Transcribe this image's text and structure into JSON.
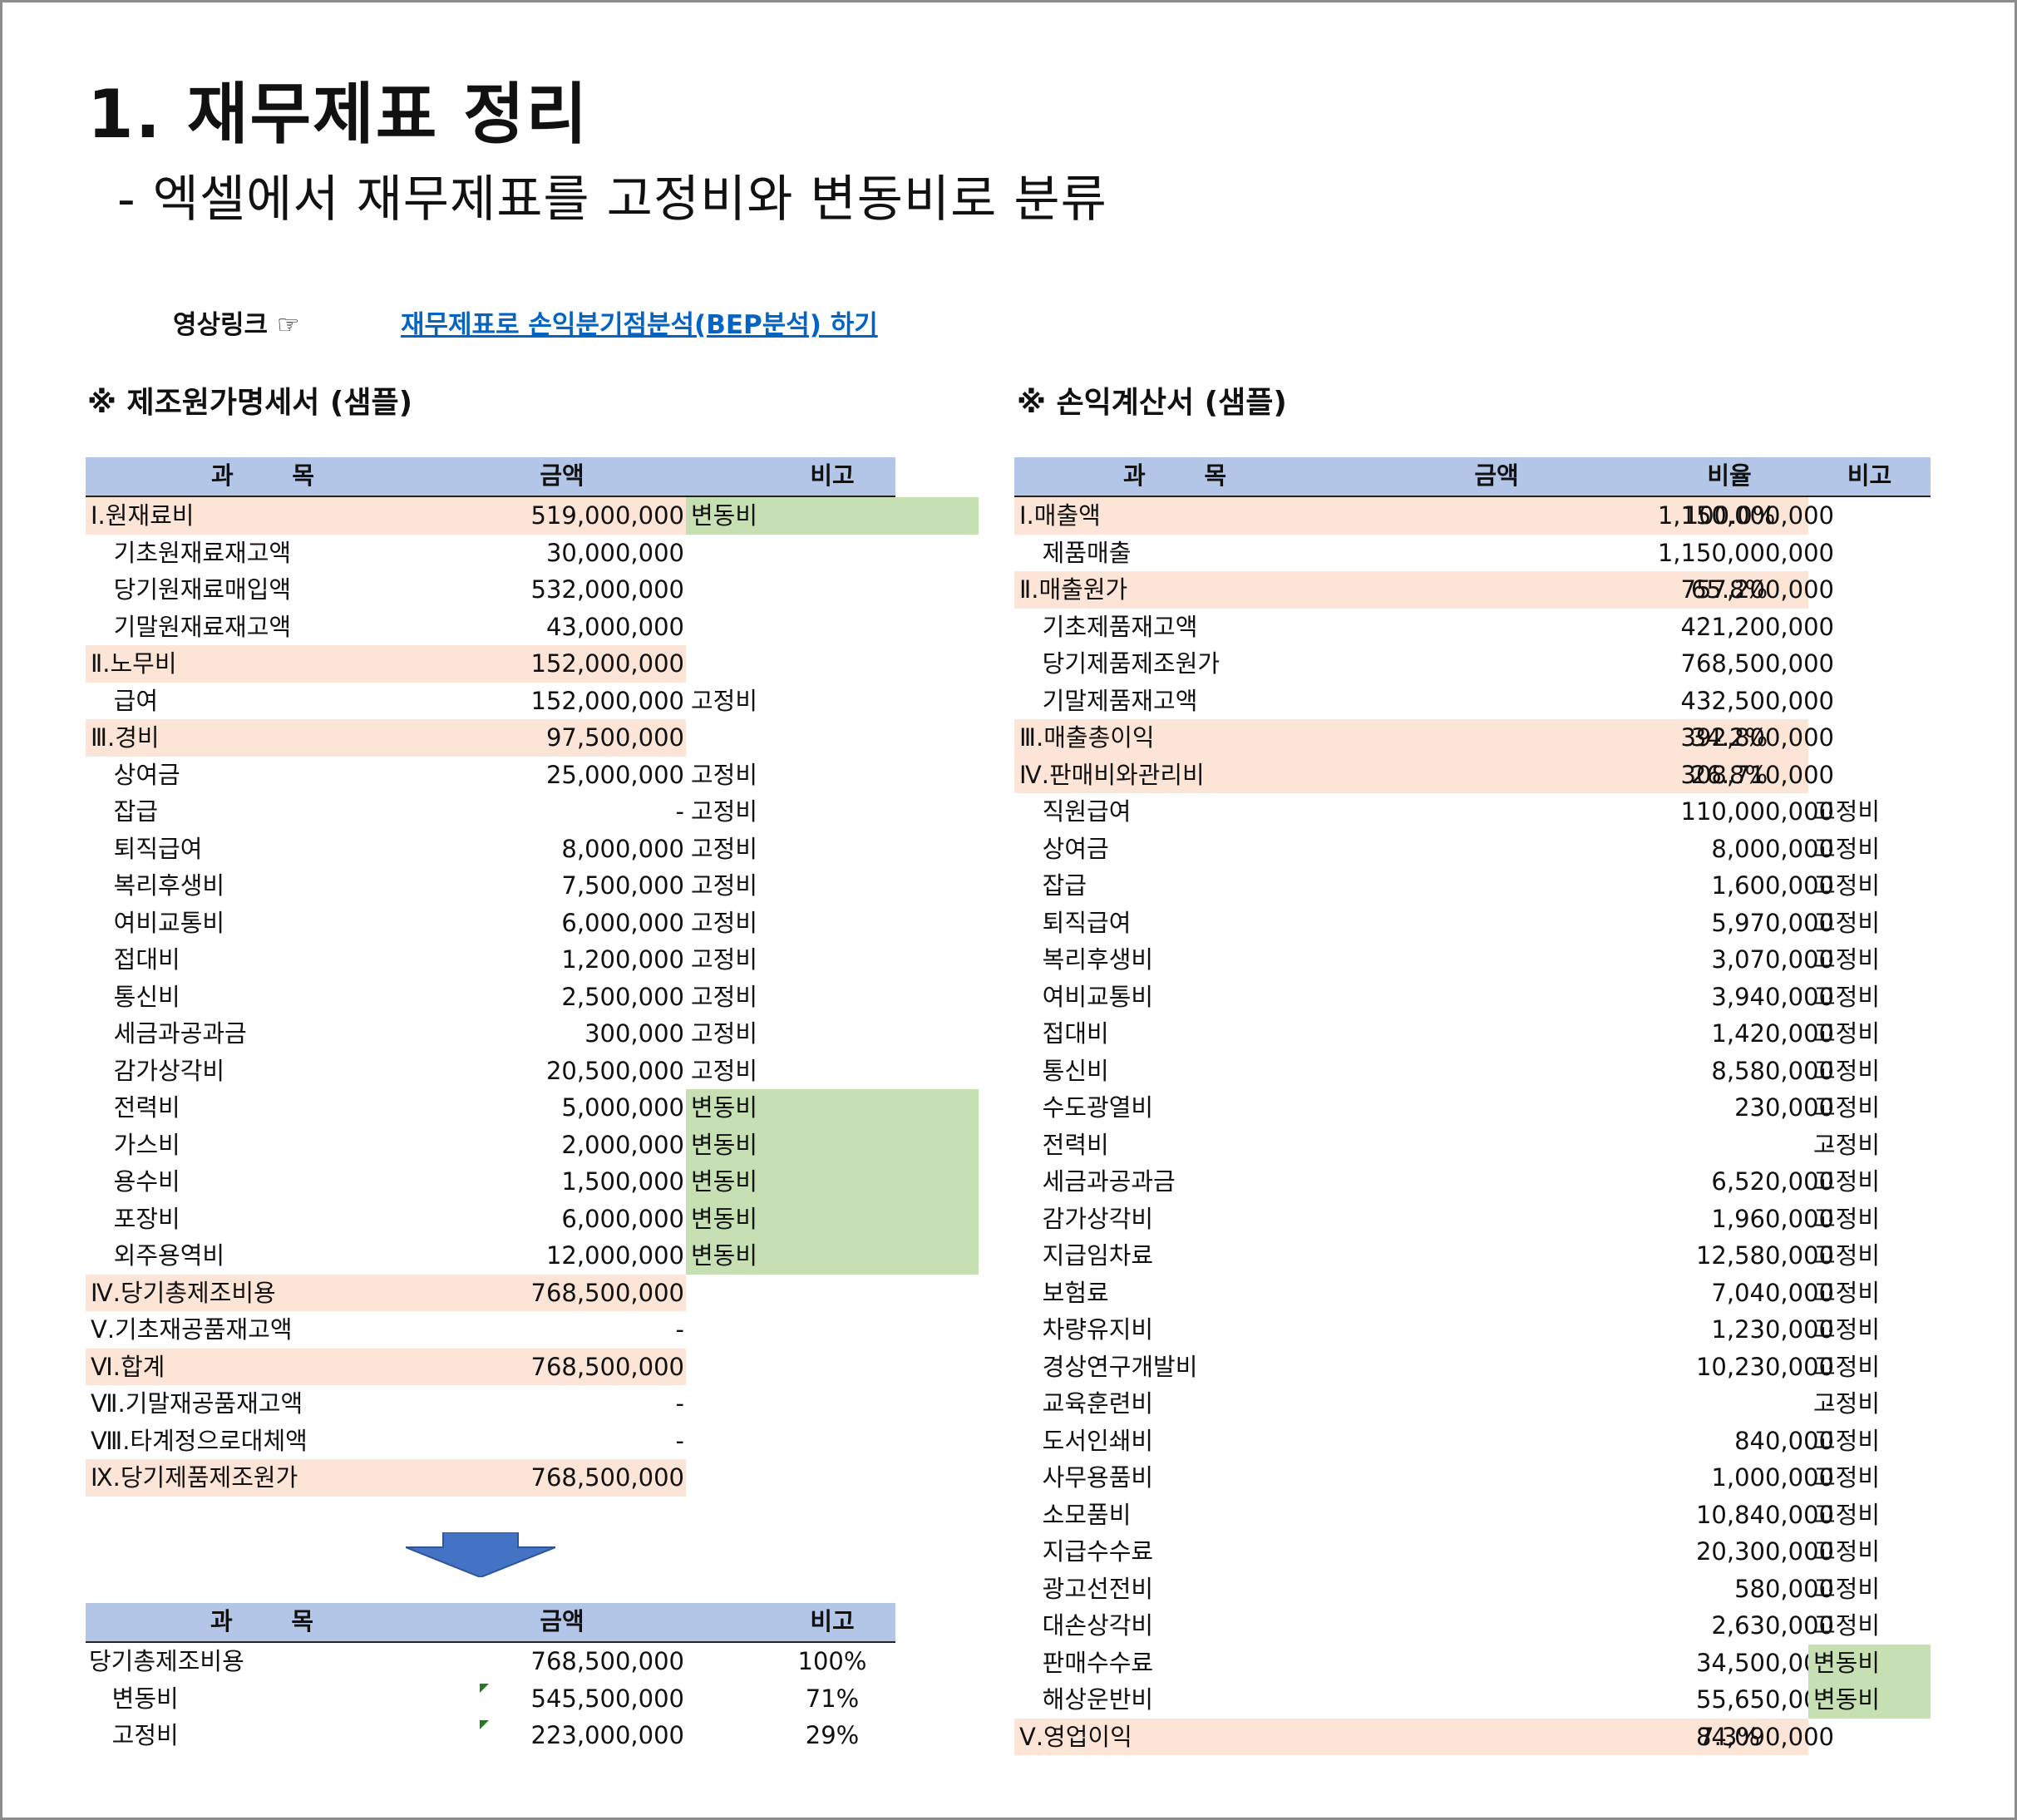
{
  "title": "1. 재무제표 정리",
  "subtitle": "- 엑셀에서 재무제표를 고정비와 변동비로 분류",
  "video_label": "영상링크 ☞",
  "video_link": "재무제표로 손익분기점분석(BEP분석) 하기",
  "left": {
    "title": "※ 제조원가명세서 (샘플)",
    "headers": {
      "name": "과       목",
      "amount": "금액",
      "note": "비고"
    },
    "rows": [
      {
        "name": "Ⅰ.원재료비",
        "amount": "519,000,000",
        "note": "변동비",
        "style": "peach",
        "note_style": "green"
      },
      {
        "name": "   기초원재료재고액",
        "amount": "30,000,000",
        "note": "",
        "style": "",
        "note_style": ""
      },
      {
        "name": "   당기원재료매입액",
        "amount": "532,000,000",
        "note": "",
        "style": "",
        "note_style": ""
      },
      {
        "name": "   기말원재료재고액",
        "amount": "43,000,000",
        "note": "",
        "style": "",
        "note_style": ""
      },
      {
        "name": "Ⅱ.노무비",
        "amount": "152,000,000",
        "note": "",
        "style": "peach",
        "note_style": ""
      },
      {
        "name": "   급여",
        "amount": "152,000,000",
        "note": "고정비",
        "style": "",
        "note_style": ""
      },
      {
        "name": "Ⅲ.경비",
        "amount": "97,500,000",
        "note": "",
        "style": "peach",
        "note_style": ""
      },
      {
        "name": "   상여금",
        "amount": "25,000,000",
        "note": "고정비",
        "style": "",
        "note_style": ""
      },
      {
        "name": "   잡급",
        "amount": "-",
        "note": "고정비",
        "style": "",
        "note_style": ""
      },
      {
        "name": "   퇴직급여",
        "amount": "8,000,000",
        "note": "고정비",
        "style": "",
        "note_style": ""
      },
      {
        "name": "   복리후생비",
        "amount": "7,500,000",
        "note": "고정비",
        "style": "",
        "note_style": ""
      },
      {
        "name": "   여비교통비",
        "amount": "6,000,000",
        "note": "고정비",
        "style": "",
        "note_style": ""
      },
      {
        "name": "   접대비",
        "amount": "1,200,000",
        "note": "고정비",
        "style": "",
        "note_style": ""
      },
      {
        "name": "   통신비",
        "amount": "2,500,000",
        "note": "고정비",
        "style": "",
        "note_style": ""
      },
      {
        "name": "   세금과공과금",
        "amount": "300,000",
        "note": "고정비",
        "style": "",
        "note_style": ""
      },
      {
        "name": "   감가상각비",
        "amount": "20,500,000",
        "note": "고정비",
        "style": "",
        "note_style": ""
      },
      {
        "name": "   전력비",
        "amount": "5,000,000",
        "note": "변동비",
        "style": "",
        "note_style": "green"
      },
      {
        "name": "   가스비",
        "amount": "2,000,000",
        "note": "변동비",
        "style": "",
        "note_style": "green"
      },
      {
        "name": "   용수비",
        "amount": "1,500,000",
        "note": "변동비",
        "style": "",
        "note_style": "green"
      },
      {
        "name": "   포장비",
        "amount": "6,000,000",
        "note": "변동비",
        "style": "",
        "note_style": "green"
      },
      {
        "name": "   외주용역비",
        "amount": "12,000,000",
        "note": "변동비",
        "style": "",
        "note_style": "green"
      },
      {
        "name": "Ⅳ.당기총제조비용",
        "amount": "768,500,000",
        "note": "",
        "style": "peach",
        "note_style": ""
      },
      {
        "name": "Ⅴ.기초재공품재고액",
        "amount": "-",
        "note": "",
        "style": "",
        "note_style": ""
      },
      {
        "name": "Ⅵ.합계",
        "amount": "768,500,000",
        "note": "",
        "style": "peach",
        "note_style": ""
      },
      {
        "name": "Ⅶ.기말재공품재고액",
        "amount": "-",
        "note": "",
        "style": "",
        "note_style": ""
      },
      {
        "name": "Ⅷ.타계정으로대체액",
        "amount": "-",
        "note": "",
        "style": "",
        "note_style": ""
      },
      {
        "name": "Ⅸ.당기제품제조원가",
        "amount": "768,500,000",
        "note": "",
        "style": "peach",
        "note_style": ""
      }
    ]
  },
  "summary": {
    "headers": {
      "name": "과       목",
      "amount": "금액",
      "note": "비고"
    },
    "rows": [
      {
        "name": "당기총제조비용",
        "amount": "768,500,000",
        "note": "100%",
        "marker": false
      },
      {
        "name": "   변동비",
        "amount": "545,500,000",
        "note": "71%",
        "marker": true
      },
      {
        "name": "   고정비",
        "amount": "223,000,000",
        "note": "29%",
        "marker": true
      }
    ]
  },
  "right": {
    "title": "※ 손익계산서 (샘플)",
    "headers": {
      "name": "과       목",
      "amount": "금액",
      "ratio": "비율",
      "note": "비고"
    },
    "rows": [
      {
        "name": "Ⅰ.매출액",
        "amount": "1,150,000,000",
        "ratio": "100.0%",
        "note": "",
        "style": "peach",
        "note_style": ""
      },
      {
        "name": "   제품매출",
        "amount": "1,150,000,000",
        "ratio": "",
        "note": "",
        "style": "",
        "note_style": ""
      },
      {
        "name": "Ⅱ.매출원가",
        "amount": "757,200,000",
        "ratio": "65.8%",
        "note": "",
        "style": "peach",
        "note_style": ""
      },
      {
        "name": "   기초제품재고액",
        "amount": "421,200,000",
        "ratio": "",
        "note": "",
        "style": "",
        "note_style": ""
      },
      {
        "name": "   당기제품제조원가",
        "amount": "768,500,000",
        "ratio": "",
        "note": "",
        "style": "",
        "note_style": ""
      },
      {
        "name": "   기말제품재고액",
        "amount": "432,500,000",
        "ratio": "",
        "note": "",
        "style": "",
        "note_style": ""
      },
      {
        "name": "Ⅲ.매출총이익",
        "amount": "392,800,000",
        "ratio": "34.2%",
        "note": "",
        "style": "peach",
        "note_style": ""
      },
      {
        "name": "Ⅳ.판매비와관리비",
        "amount": "308,710,000",
        "ratio": "26.8%",
        "note": "",
        "style": "peach",
        "note_style": ""
      },
      {
        "name": "   직원급여",
        "amount": "110,000,000",
        "ratio": "",
        "note": "고정비",
        "style": "",
        "note_style": ""
      },
      {
        "name": "   상여금",
        "amount": "8,000,000",
        "ratio": "",
        "note": "고정비",
        "style": "",
        "note_style": ""
      },
      {
        "name": "   잡급",
        "amount": "1,600,000",
        "ratio": "",
        "note": "고정비",
        "style": "",
        "note_style": ""
      },
      {
        "name": "   퇴직급여",
        "amount": "5,970,000",
        "ratio": "",
        "note": "고정비",
        "style": "",
        "note_style": ""
      },
      {
        "name": "   복리후생비",
        "amount": "3,070,000",
        "ratio": "",
        "note": "고정비",
        "style": "",
        "note_style": ""
      },
      {
        "name": "   여비교통비",
        "amount": "3,940,000",
        "ratio": "",
        "note": "고정비",
        "style": "",
        "note_style": ""
      },
      {
        "name": "   접대비",
        "amount": "1,420,000",
        "ratio": "",
        "note": "고정비",
        "style": "",
        "note_style": ""
      },
      {
        "name": "   통신비",
        "amount": "8,580,000",
        "ratio": "",
        "note": "고정비",
        "style": "",
        "note_style": ""
      },
      {
        "name": "   수도광열비",
        "amount": "230,000",
        "ratio": "",
        "note": "고정비",
        "style": "",
        "note_style": ""
      },
      {
        "name": "   전력비",
        "amount": "-",
        "ratio": "",
        "note": "고정비",
        "style": "",
        "note_style": ""
      },
      {
        "name": "   세금과공과금",
        "amount": "6,520,000",
        "ratio": "",
        "note": "고정비",
        "style": "",
        "note_style": ""
      },
      {
        "name": "   감가상각비",
        "amount": "1,960,000",
        "ratio": "",
        "note": "고정비",
        "style": "",
        "note_style": ""
      },
      {
        "name": "   지급임차료",
        "amount": "12,580,000",
        "ratio": "",
        "note": "고정비",
        "style": "",
        "note_style": ""
      },
      {
        "name": "   보험료",
        "amount": "7,040,000",
        "ratio": "",
        "note": "고정비",
        "style": "",
        "note_style": ""
      },
      {
        "name": "   차량유지비",
        "amount": "1,230,000",
        "ratio": "",
        "note": "고정비",
        "style": "",
        "note_style": ""
      },
      {
        "name": "   경상연구개발비",
        "amount": "10,230,000",
        "ratio": "",
        "note": "고정비",
        "style": "",
        "note_style": ""
      },
      {
        "name": "   교육훈련비",
        "amount": "-",
        "ratio": "",
        "note": "고정비",
        "style": "",
        "note_style": ""
      },
      {
        "name": "   도서인쇄비",
        "amount": "840,000",
        "ratio": "",
        "note": "고정비",
        "style": "",
        "note_style": ""
      },
      {
        "name": "   사무용품비",
        "amount": "1,000,000",
        "ratio": "",
        "note": "고정비",
        "style": "",
        "note_style": ""
      },
      {
        "name": "   소모품비",
        "amount": "10,840,000",
        "ratio": "",
        "note": "고정비",
        "style": "",
        "note_style": ""
      },
      {
        "name": "   지급수수료",
        "amount": "20,300,000",
        "ratio": "",
        "note": "고정비",
        "style": "",
        "note_style": ""
      },
      {
        "name": "   광고선전비",
        "amount": "580,000",
        "ratio": "",
        "note": "고정비",
        "style": "",
        "note_style": ""
      },
      {
        "name": "   대손상각비",
        "amount": "2,630,000",
        "ratio": "",
        "note": "고정비",
        "style": "",
        "note_style": ""
      },
      {
        "name": "   판매수수료",
        "amount": "34,500,000",
        "ratio": "",
        "note": "변동비",
        "style": "",
        "note_style": "green"
      },
      {
        "name": "   해상운반비",
        "amount": "55,650,000",
        "ratio": "",
        "note": "변동비",
        "style": "",
        "note_style": "green"
      },
      {
        "name": "Ⅴ.영업이익",
        "amount": "84,090,000",
        "ratio": "7.3%",
        "note": "",
        "style": "peach",
        "note_style": ""
      }
    ]
  },
  "colors": {
    "header": "#b4c6e7",
    "highlight": "#fce4d6",
    "variable": "#c6e0b4",
    "link": "#0563c1",
    "arrow": "#4472c4"
  },
  "arrow_icon": "down-arrow-icon"
}
